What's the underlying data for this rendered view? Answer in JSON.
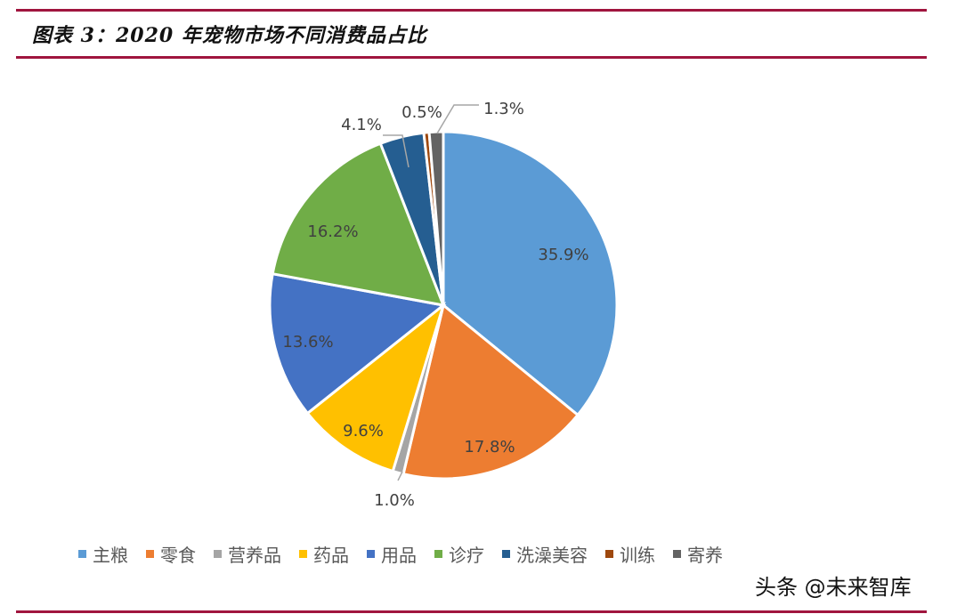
{
  "title": "图表 3：2020 年宠物市场不同消费品占比",
  "chart_data": {
    "type": "pie",
    "title": "图表 3：2020 年宠物市场不同消费品占比",
    "categories": [
      "主粮",
      "零食",
      "营养品",
      "药品",
      "用品",
      "诊疗",
      "洗澡美容",
      "训练",
      "寄养"
    ],
    "values": [
      35.9,
      17.8,
      1.0,
      9.6,
      13.6,
      16.2,
      4.1,
      0.5,
      1.3
    ],
    "labels": [
      "35.9%",
      "17.8%",
      "1.0%",
      "9.6%",
      "13.6%",
      "16.2%",
      "4.1%",
      "0.5%",
      "1.3%"
    ],
    "colors": [
      "#5b9bd5",
      "#ed7d31",
      "#a5a5a5",
      "#ffc000",
      "#4472c4",
      "#70ad47",
      "#255e91",
      "#9e480e",
      "#636363"
    ],
    "legend_position": "bottom",
    "start_angle": "12 o'clock, clockwise"
  },
  "legend": [
    "主粮",
    "零食",
    "营养品",
    "药品",
    "用品",
    "诊疗",
    "洗澡美容",
    "训练",
    "寄养"
  ],
  "watermark": "头条 @未来智库"
}
